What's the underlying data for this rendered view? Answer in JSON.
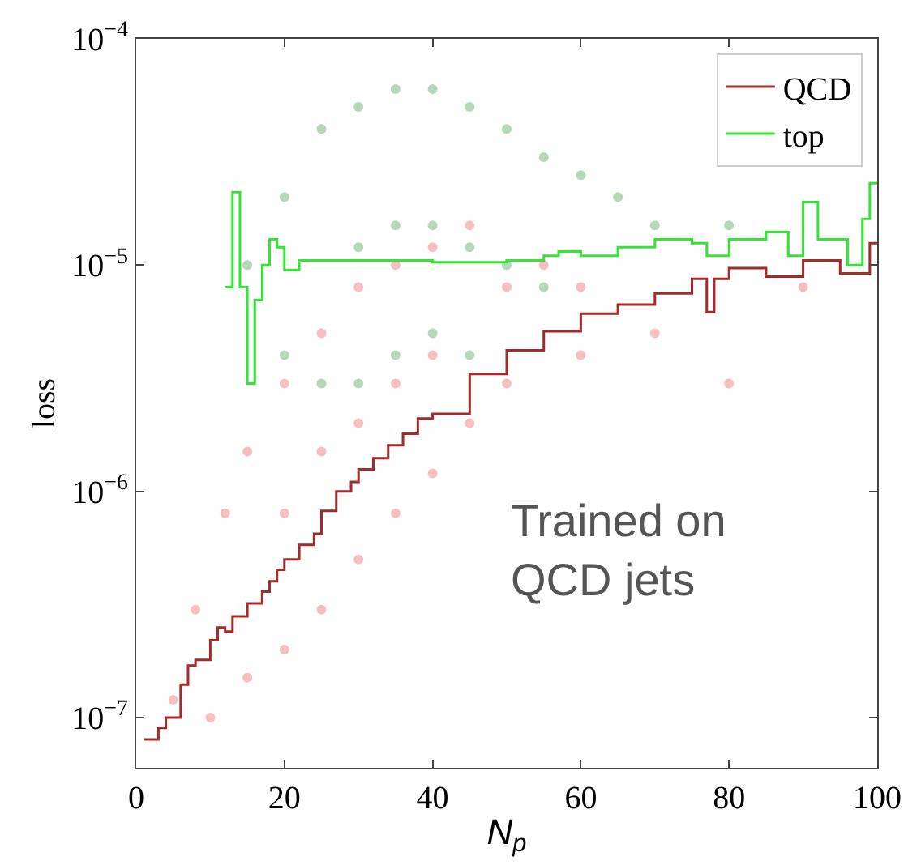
{
  "chart_data": {
    "type": "step",
    "xlabel": "N$_{p}$",
    "ylabel": "loss",
    "log": "y",
    "legend": "top right",
    "xlim": [
      0,
      100
    ],
    "xticks": [
      0,
      20,
      40,
      60,
      80,
      100
    ],
    "ylim": [
      6e-08,
      0.0001
    ],
    "yticks": [
      {
        "value": 1e-07,
        "label": "10$^{−7}$"
      },
      {
        "value": 1e-06,
        "label": "10$^{−6}$"
      },
      {
        "value": 1e-05,
        "label": "10$^{−5}$"
      },
      {
        "value": 0.0001,
        "label": "10$^{−4}$"
      }
    ],
    "annotations": [
      "Trained on\nQCD jets"
    ],
    "series": [
      {
        "type": "scatter",
        "color": "#e8484f",
        "x": [
          5,
          8,
          10,
          12,
          15,
          15,
          20,
          20,
          20,
          25,
          25,
          25,
          30,
          30,
          30,
          35,
          35,
          35,
          40,
          40,
          40,
          45,
          45,
          50,
          50,
          55,
          60,
          60,
          70,
          80,
          90
        ],
        "values": [
          1.2e-07,
          3e-07,
          1e-07,
          8e-07,
          1.5e-06,
          1.5e-07,
          3e-06,
          2e-07,
          8e-07,
          5e-06,
          3e-07,
          1.5e-06,
          8e-06,
          5e-07,
          2e-06,
          1e-05,
          8e-07,
          3e-06,
          1.2e-05,
          1.2e-06,
          4e-06,
          1.5e-05,
          2e-06,
          8e-06,
          3e-06,
          1e-05,
          8e-06,
          4e-06,
          5e-06,
          3e-06,
          8e-06
        ]
      },
      {
        "type": "scatter",
        "color": "#2e8b3a",
        "x": [
          15,
          20,
          20,
          25,
          25,
          30,
          30,
          30,
          35,
          35,
          35,
          40,
          40,
          40,
          45,
          45,
          45,
          50,
          50,
          55,
          55,
          60,
          65,
          70,
          80
        ],
        "values": [
          1e-05,
          2e-05,
          4e-06,
          4e-05,
          3e-06,
          5e-05,
          1.2e-05,
          3e-06,
          6e-05,
          1.5e-05,
          4e-06,
          6e-05,
          1.5e-05,
          5e-06,
          5e-05,
          1.2e-05,
          4e-06,
          4e-05,
          1e-05,
          3e-05,
          8e-06,
          2.5e-05,
          2e-05,
          1.5e-05,
          1.5e-05
        ]
      },
      {
        "name": "QCD",
        "color": "#a52a2a",
        "x": [
          1,
          3,
          4,
          6,
          7,
          8,
          10,
          11,
          12,
          13,
          15,
          17,
          18,
          19,
          20,
          22,
          24,
          25,
          27,
          29,
          30,
          32,
          34,
          36,
          38,
          40,
          45,
          50,
          55,
          60,
          65,
          70,
          75,
          77,
          78,
          80,
          85,
          90,
          95,
          99,
          100
        ],
        "values": [
          8e-08,
          9e-08,
          1e-07,
          1.4e-07,
          1.7e-07,
          1.8e-07,
          2.2e-07,
          2.5e-07,
          2.4e-07,
          2.8e-07,
          3.2e-07,
          3.6e-07,
          4e-07,
          4.5e-07,
          5e-07,
          5.8e-07,
          6.5e-07,
          8.2e-07,
          1e-06,
          1.1e-06,
          1.25e-06,
          1.4e-06,
          1.6e-06,
          1.8e-06,
          2.1e-06,
          2.2e-06,
          3.3e-06,
          4.2e-06,
          5.1e-06,
          6.1e-06,
          6.7e-06,
          7.5e-06,
          8.7e-06,
          6.2e-06,
          8.7e-06,
          9.7e-06,
          8.9e-06,
          1.05e-05,
          9.2e-06,
          1.25e-05,
          1.25e-05
        ]
      },
      {
        "name": "top",
        "color": "#33e633",
        "x": [
          12,
          13,
          14,
          15,
          16,
          17,
          18,
          19,
          20,
          22,
          30,
          40,
          50,
          55,
          57,
          60,
          65,
          70,
          75,
          77,
          80,
          85,
          88,
          90,
          92,
          95,
          96,
          98,
          99,
          100
        ],
        "values": [
          8e-06,
          2.1e-05,
          8e-06,
          3e-06,
          7e-06,
          1e-05,
          1.3e-05,
          1.2e-05,
          9.5e-06,
          1.05e-05,
          1.05e-05,
          1.03e-05,
          1.05e-05,
          1.1e-05,
          1.15e-05,
          1.1e-05,
          1.2e-05,
          1.3e-05,
          1.25e-05,
          1.1e-05,
          1.3e-05,
          1.4e-05,
          1.1e-05,
          1.9e-05,
          1.3e-05,
          1.3e-05,
          1e-05,
          1.6e-05,
          2.3e-05,
          2.3e-05
        ]
      }
    ]
  }
}
